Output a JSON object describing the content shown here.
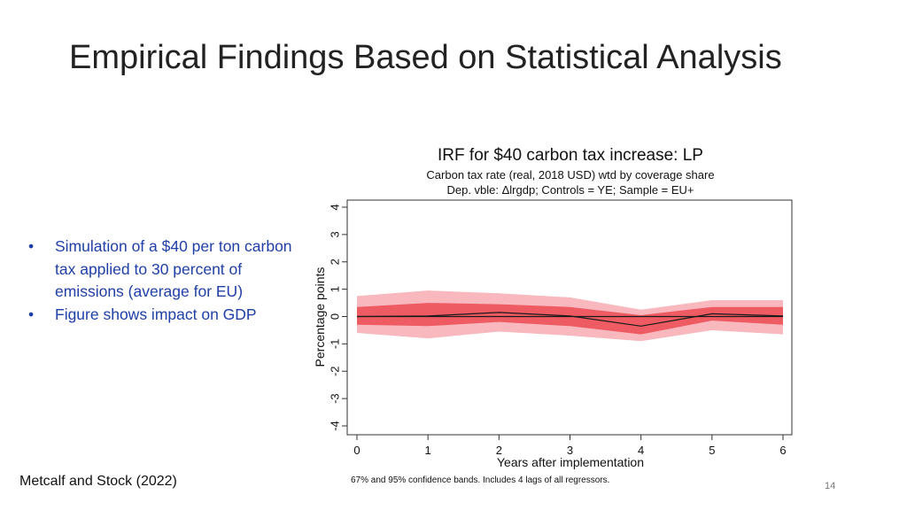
{
  "slide": {
    "title": "Empirical Findings Based on Statistical Analysis",
    "bullets": [
      "Simulation of a $40 per ton carbon tax applied to 30 percent of emissions (average for EU)",
      "Figure shows impact on GDP"
    ],
    "citation": "Metcalf and Stock (2022)",
    "page_number": "14"
  },
  "chart_data": {
    "type": "line",
    "title": "IRF for $40 carbon tax increase: LP",
    "subtitle_lines": [
      "Carbon tax rate (real, 2018 USD) wtd by coverage share",
      "Dep. vble: Δlrgdp; Controls = YE; Sample = EU+"
    ],
    "xlabel": "Years after implementation",
    "ylabel": "Percentage points",
    "note": "67% and 95% confidence bands. Includes 4 lags of all regressors.",
    "x": [
      0,
      1,
      2,
      3,
      4,
      5,
      6
    ],
    "xlim": [
      0,
      6
    ],
    "ylim": [
      -4,
      4
    ],
    "yticks": [
      -4,
      -3,
      -2,
      -1,
      0,
      1,
      2,
      3,
      4
    ],
    "estimate": [
      0,
      0.02,
      0.15,
      0.02,
      -0.35,
      0.1,
      0.02
    ],
    "band_95": {
      "lower": [
        -0.6,
        -0.8,
        -0.55,
        -0.7,
        -0.9,
        -0.5,
        -0.65
      ],
      "upper": [
        0.75,
        0.95,
        0.85,
        0.7,
        0.25,
        0.6,
        0.6
      ]
    },
    "band_67": {
      "lower": [
        -0.3,
        -0.35,
        -0.2,
        -0.35,
        -0.65,
        -0.15,
        -0.3
      ],
      "upper": [
        0.35,
        0.5,
        0.45,
        0.35,
        0.05,
        0.35,
        0.35
      ]
    },
    "zero_line": true,
    "grid": false,
    "colors": {
      "band_95": "#f8b8be",
      "band_67": "#ef5b62",
      "estimate": "#1a1a1a",
      "zero_line": "#1a1a1a"
    }
  }
}
